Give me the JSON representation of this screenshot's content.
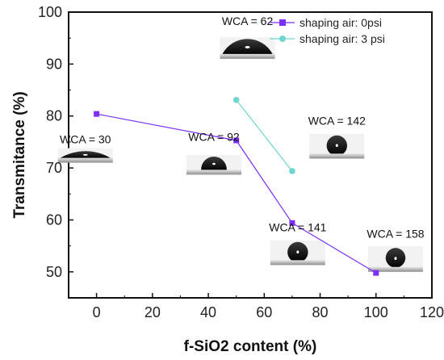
{
  "chart_data": {
    "type": "line",
    "xlabel": "f-SiO2 content (%)",
    "ylabel": "Transmitance (%)",
    "xlim": [
      -10,
      120
    ],
    "ylim": [
      45,
      100
    ],
    "xticks": [
      0,
      20,
      40,
      60,
      80,
      100,
      120
    ],
    "yticks": [
      50,
      60,
      70,
      80,
      90,
      100
    ],
    "x_tick_labels": [
      "0",
      "20",
      "40",
      "60",
      "80",
      "100",
      "120"
    ],
    "y_tick_labels": [
      "50",
      "60",
      "70",
      "80",
      "90",
      "100"
    ],
    "legend_position": "top-right",
    "series": [
      {
        "name": "shaping air: 0psi",
        "color": "#7b2ff7",
        "marker": "square",
        "x": [
          0,
          50,
          70,
          100
        ],
        "y": [
          80.4,
          75.3,
          59.4,
          49.8
        ]
      },
      {
        "name": "shaping air: 3 psi",
        "color": "#6fd6cf",
        "marker": "circle",
        "x": [
          50,
          70
        ],
        "y": [
          83.1,
          69.4
        ]
      }
    ],
    "annotations": [
      {
        "text": "WCA = 30",
        "x": -4,
        "y": 73.5,
        "contact_angle": 30
      },
      {
        "text": "WCA = 62",
        "x": 54,
        "y": 93.5,
        "contact_angle": 62
      },
      {
        "text": "WCA = 92",
        "x": 42,
        "y": 71.2,
        "contact_angle": 92
      },
      {
        "text": "WCA = 142",
        "x": 86,
        "y": 74.3,
        "contact_angle": 142
      },
      {
        "text": "WCA = 141",
        "x": 72,
        "y": 53.8,
        "contact_angle": 141
      },
      {
        "text": "WCA = 158",
        "x": 107,
        "y": 52.5,
        "contact_angle": 158
      }
    ]
  }
}
